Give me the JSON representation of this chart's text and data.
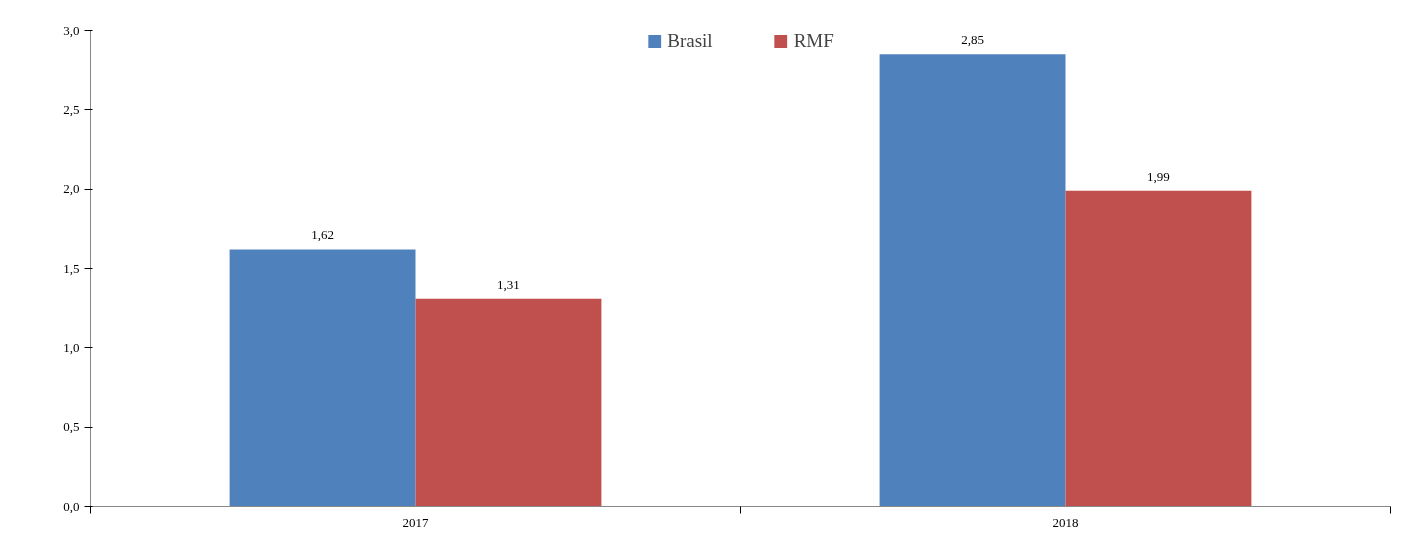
{
  "chart_data": {
    "type": "bar",
    "categories": [
      "2017",
      "2018"
    ],
    "series": [
      {
        "name": "Brasil",
        "color": "#4f81bd",
        "values": [
          1.62,
          2.85
        ],
        "value_labels": [
          "1,62",
          "2,85"
        ]
      },
      {
        "name": "RMF",
        "color": "#c0504d",
        "values": [
          1.31,
          1.99
        ],
        "value_labels": [
          "1,31",
          "1,99"
        ]
      }
    ],
    "ylim": [
      0,
      3
    ],
    "yticks": [
      {
        "value": 0,
        "label": "0,0"
      },
      {
        "value": 0.5,
        "label": "0,5"
      },
      {
        "value": 1,
        "label": "1,0"
      },
      {
        "value": 1.5,
        "label": "1,5"
      },
      {
        "value": 2,
        "label": "2,0"
      },
      {
        "value": 2.5,
        "label": "2,5"
      },
      {
        "value": 3,
        "label": "3,0"
      }
    ],
    "grid": false,
    "legend": "top"
  }
}
